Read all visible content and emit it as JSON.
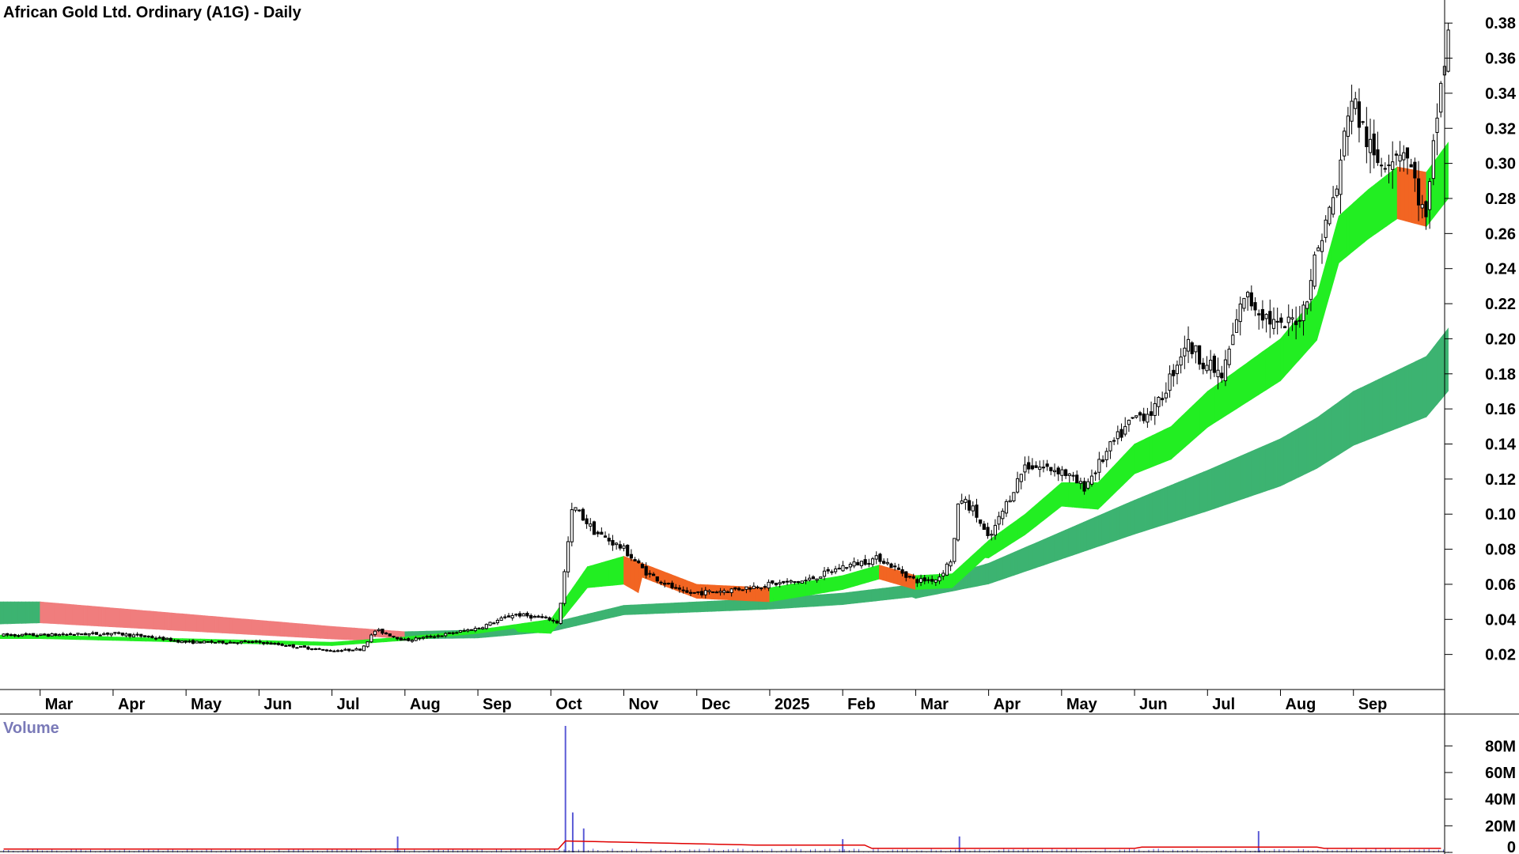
{
  "header": {
    "title": "African Gold Ltd. Ordinary (A1G) - Daily"
  },
  "volume_panel": {
    "label": "Volume"
  },
  "colors": {
    "background": "#ffffff",
    "axis": "#000000",
    "candle": "#000000",
    "short_ribbon_up": "#22ee22",
    "short_ribbon_down": "#f26522",
    "long_ribbon_up": "#3cb371",
    "long_ribbon_down": "#f07d7d",
    "volume_bars": "#5b5bd6",
    "volume_average": "#e00000"
  },
  "chart_data": [
    {
      "type": "candlestick",
      "title": "African Gold Ltd. Ordinary (A1G) - Daily",
      "xlabel": "",
      "ylabel": "",
      "ylim": [
        0.0,
        0.39
      ],
      "grid": false,
      "y_ticks": [
        "0.02",
        "0.04",
        "0.06",
        "0.08",
        "0.10",
        "0.12",
        "0.14",
        "0.16",
        "0.18",
        "0.20",
        "0.22",
        "0.24",
        "0.26",
        "0.28",
        "0.30",
        "0.32",
        "0.34",
        "0.36",
        "0.38"
      ],
      "x_ticks": [
        "Mar",
        "Apr",
        "May",
        "Jun",
        "Jul",
        "Aug",
        "Sep",
        "Oct",
        "Nov",
        "Dec",
        "2025",
        "Feb",
        "Mar",
        "Apr",
        "May",
        "Jun",
        "Jul",
        "Aug",
        "Sep"
      ],
      "x_tick_months": [
        0,
        1,
        2,
        3,
        4,
        5,
        6,
        7,
        8,
        9,
        10,
        11,
        12,
        13,
        14,
        15,
        16,
        17,
        18
      ],
      "x_range_months": [
        -0.55,
        19.25
      ],
      "price_path": [
        [
          0.0,
          0.031
        ],
        [
          1.0,
          0.032
        ],
        [
          1.5,
          0.03
        ],
        [
          2.0,
          0.027
        ],
        [
          3.0,
          0.027
        ],
        [
          4.0,
          0.022
        ],
        [
          4.4,
          0.023
        ],
        [
          4.6,
          0.034
        ],
        [
          5.0,
          0.028
        ],
        [
          5.5,
          0.031
        ],
        [
          6.0,
          0.035
        ],
        [
          6.5,
          0.043
        ],
        [
          7.0,
          0.04
        ],
        [
          7.1,
          0.038
        ],
        [
          7.3,
          0.105
        ],
        [
          7.6,
          0.09
        ],
        [
          8.0,
          0.08
        ],
        [
          8.3,
          0.067
        ],
        [
          8.8,
          0.055
        ],
        [
          9.0,
          0.055
        ],
        [
          9.5,
          0.057
        ],
        [
          10.0,
          0.06
        ],
        [
          10.5,
          0.062
        ],
        [
          11.0,
          0.07
        ],
        [
          11.5,
          0.075
        ],
        [
          12.0,
          0.062
        ],
        [
          12.3,
          0.063
        ],
        [
          12.5,
          0.075
        ],
        [
          12.6,
          0.11
        ],
        [
          12.8,
          0.102
        ],
        [
          13.0,
          0.085
        ],
        [
          13.5,
          0.128
        ],
        [
          14.0,
          0.125
        ],
        [
          14.3,
          0.115
        ],
        [
          14.7,
          0.14
        ],
        [
          15.0,
          0.155
        ],
        [
          15.3,
          0.16
        ],
        [
          15.7,
          0.198
        ],
        [
          16.0,
          0.185
        ],
        [
          16.2,
          0.178
        ],
        [
          16.5,
          0.225
        ],
        [
          17.0,
          0.205
        ],
        [
          17.3,
          0.215
        ],
        [
          17.5,
          0.25
        ],
        [
          17.8,
          0.29
        ],
        [
          17.95,
          0.34
        ],
        [
          18.3,
          0.3
        ],
        [
          18.7,
          0.31
        ],
        [
          19.0,
          0.265
        ],
        [
          19.15,
          0.33
        ],
        [
          19.3,
          0.372
        ]
      ],
      "series": [
        {
          "name": "",
          "ribbon": "short-term",
          "upper": [
            [
              0,
              0.031
            ],
            [
              4,
              0.027
            ],
            [
              5,
              0.03
            ],
            [
              6,
              0.034
            ],
            [
              7,
              0.04
            ],
            [
              7.5,
              0.07
            ],
            [
              8.0,
              0.076
            ],
            [
              8.5,
              0.068
            ],
            [
              9,
              0.06
            ],
            [
              10,
              0.058
            ],
            [
              11,
              0.065
            ],
            [
              11.5,
              0.071
            ],
            [
              12,
              0.065
            ],
            [
              12.5,
              0.066
            ],
            [
              13,
              0.085
            ],
            [
              13.5,
              0.1
            ],
            [
              14,
              0.118
            ],
            [
              14.5,
              0.118
            ],
            [
              15,
              0.14
            ],
            [
              15.5,
              0.15
            ],
            [
              16,
              0.17
            ],
            [
              16.5,
              0.185
            ],
            [
              17,
              0.2
            ],
            [
              17.5,
              0.225
            ],
            [
              17.8,
              0.27
            ],
            [
              18.2,
              0.285
            ],
            [
              18.6,
              0.298
            ],
            [
              19.0,
              0.295
            ],
            [
              19.3,
              0.312
            ]
          ]
        },
        {
          "name": "",
          "ribbon": "long-term",
          "upper": [
            [
              0,
              0.05
            ],
            [
              4,
              0.036
            ],
            [
              5,
              0.033
            ],
            [
              6,
              0.034
            ],
            [
              7,
              0.038
            ],
            [
              8,
              0.048
            ],
            [
              9,
              0.05
            ],
            [
              10,
              0.052
            ],
            [
              11,
              0.055
            ],
            [
              12,
              0.06
            ],
            [
              13,
              0.072
            ],
            [
              14,
              0.09
            ],
            [
              15,
              0.108
            ],
            [
              16,
              0.125
            ],
            [
              17,
              0.143
            ],
            [
              17.5,
              0.155
            ],
            [
              18,
              0.17
            ],
            [
              19,
              0.19
            ],
            [
              19.3,
              0.206
            ]
          ]
        }
      ]
    },
    {
      "type": "bar",
      "title": "Volume",
      "ylim": [
        0,
        95000000
      ],
      "y_ticks": [
        "0",
        "20M",
        "40M",
        "60M",
        "80M"
      ],
      "spikes": [
        {
          "x_month": 4.9,
          "value": 12000000
        },
        {
          "x_month": 7.2,
          "value": 95000000
        },
        {
          "x_month": 7.3,
          "value": 30000000
        },
        {
          "x_month": 7.45,
          "value": 18000000
        },
        {
          "x_month": 11.0,
          "value": 10000000
        },
        {
          "x_month": 12.6,
          "value": 12000000
        },
        {
          "x_month": 16.7,
          "value": 16000000
        }
      ]
    }
  ]
}
